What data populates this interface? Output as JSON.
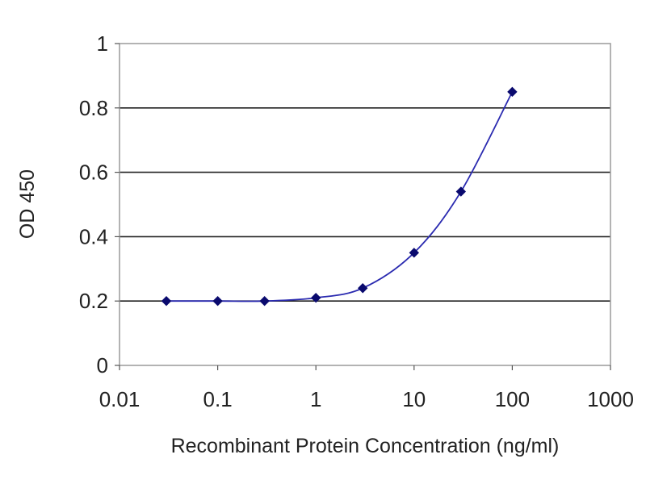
{
  "chart_data": {
    "type": "scatter",
    "title": "",
    "xlabel": "Recombinant Protein Concentration (ng/ml)",
    "ylabel": "OD 450",
    "x_scale": "log",
    "xlim": [
      0.01,
      1000
    ],
    "ylim": [
      0,
      1
    ],
    "x_ticks": [
      0.01,
      0.1,
      1,
      10,
      100,
      1000
    ],
    "x_tick_labels": [
      "0.01",
      "0.1",
      "1",
      "10",
      "100",
      "1000"
    ],
    "y_ticks": [
      0,
      0.2,
      0.4,
      0.6,
      0.8,
      1
    ],
    "y_tick_labels": [
      "0",
      "0.2",
      "0.4",
      "0.6",
      "0.8",
      "1"
    ],
    "grid": "horizontal",
    "legend": "none",
    "series": [
      {
        "x": [
          0.03,
          0.1,
          0.3,
          1,
          3,
          10,
          30,
          100
        ],
        "y": [
          0.2,
          0.2,
          0.2,
          0.21,
          0.24,
          0.35,
          0.54,
          0.85
        ],
        "fit_line": true
      }
    ],
    "colors": {
      "marker": "#0a0a6e",
      "line": "#2a2ab0",
      "grid": "#222222",
      "frame": "#999999"
    }
  }
}
